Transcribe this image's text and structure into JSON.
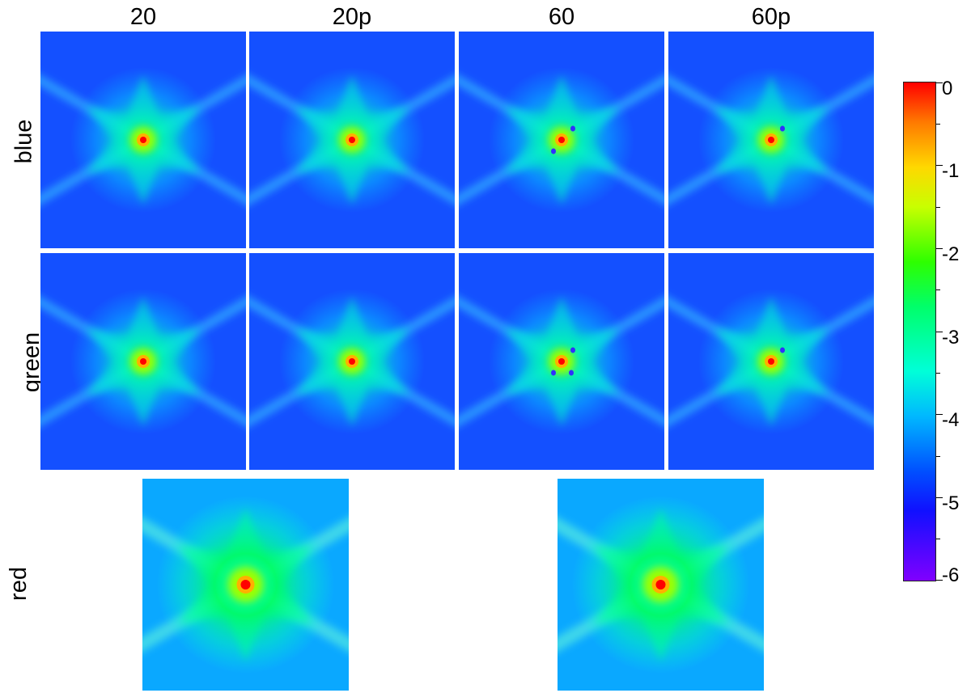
{
  "columns": [
    "20",
    "20p",
    "60",
    "60p"
  ],
  "rows": [
    "blue",
    "green",
    "red"
  ],
  "colorbar": {
    "ticks": [
      "0",
      "-1",
      "-2",
      "-3",
      "-4",
      "-5",
      "-6"
    ],
    "range": [
      -6,
      0
    ],
    "colors": [
      "#8000ff",
      "#1010ff",
      "#00b8ff",
      "#00ff6a",
      "#c8ff00",
      "#ff7a00",
      "#ff0000"
    ]
  },
  "panels": [
    {
      "row": "blue",
      "column": "20",
      "spots": 0
    },
    {
      "row": "blue",
      "column": "20p",
      "spots": 0
    },
    {
      "row": "blue",
      "column": "60",
      "spots": 2
    },
    {
      "row": "blue",
      "column": "60p",
      "spots": 1
    },
    {
      "row": "green",
      "column": "20",
      "spots": 0
    },
    {
      "row": "green",
      "column": "20p",
      "spots": 0
    },
    {
      "row": "green",
      "column": "60",
      "spots": 3
    },
    {
      "row": "green",
      "column": "60p",
      "spots": 1
    },
    {
      "row": "red",
      "column": "",
      "spots": 0
    },
    {
      "row": "red",
      "column": "",
      "spots": 0
    }
  ]
}
